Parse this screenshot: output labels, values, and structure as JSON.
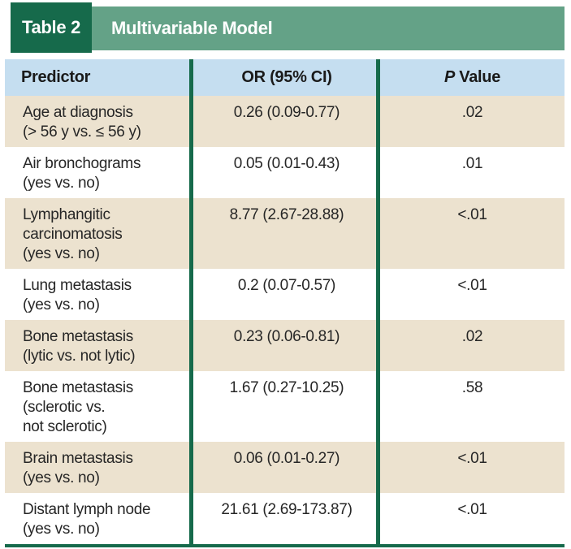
{
  "header": {
    "table_label": "Table 2",
    "title": "Multivariable Model"
  },
  "columns": {
    "predictor": "Predictor",
    "or": "OR (95% CI)",
    "p_italic": "P",
    "p_rest": " Value"
  },
  "rows": [
    {
      "predictor": "Age at diagnosis\n(> 56 y vs. ≤ 56 y)",
      "or": "0.26 (0.09-0.77)",
      "p": ".02"
    },
    {
      "predictor": "Air bronchograms\n(yes vs. no)",
      "or": "0.05 (0.01-0.43)",
      "p": ".01"
    },
    {
      "predictor": "Lymphangitic\ncarcinomatosis\n(yes vs. no)",
      "or": "8.77 (2.67-28.88)",
      "p": "<.01"
    },
    {
      "predictor": "Lung metastasis\n(yes vs. no)",
      "or": "0.2 (0.07-0.57)",
      "p": "<.01"
    },
    {
      "predictor": "Bone metastasis\n(lytic vs. not lytic)",
      "or": "0.23 (0.06-0.81)",
      "p": ".02"
    },
    {
      "predictor": "Bone metastasis\n(sclerotic vs.\nnot sclerotic)",
      "or": "1.67 (0.27-10.25)",
      "p": ".58"
    },
    {
      "predictor": "Brain metastasis\n(yes vs. no)",
      "or": "0.06 (0.01-0.27)",
      "p": "<.01"
    },
    {
      "predictor": "Distant lymph node\n(yes vs. no)",
      "or": "21.61 (2.69-173.87)",
      "p": "<.01"
    }
  ],
  "colors": {
    "dark_green": "#166a4b",
    "light_green": "#64a287",
    "header_blue": "#c5def0",
    "row_tan": "#ece2cf",
    "divider_green": "#166a4b",
    "text": "#262626"
  }
}
